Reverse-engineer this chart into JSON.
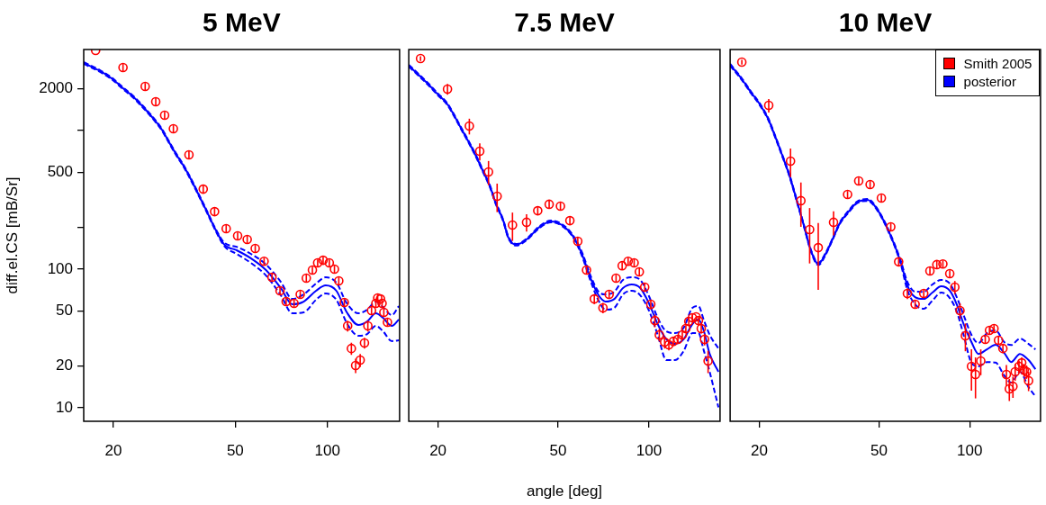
{
  "chart_data": [
    {
      "type": "scatter",
      "title": "5 MeV",
      "ylabel": "diff.el.CS [mB/Sr]",
      "log": "xy",
      "xlim": [
        16,
        172
      ],
      "xticks": [
        20,
        50,
        100
      ],
      "ylim": [
        8,
        3840
      ],
      "yticks": [
        10,
        20,
        50,
        100,
        {
          "value": 200,
          "label": null
        },
        500,
        {
          "value": 1000,
          "label": null
        },
        2000
      ],
      "series": [
        {
          "color": "#ff0000",
          "marker": "circle",
          "x": [
            17.5,
            21.5,
            25.4,
            27.5,
            29.4,
            31.4,
            35.3,
            39.3,
            42.8,
            46.7,
            50.9,
            54.7,
            58.1,
            62.1,
            65.9,
            70.0,
            73.3,
            77.8,
            81.5,
            85.3,
            89.3,
            92.9,
            96.8,
            101.4,
            105.4,
            108.9,
            113.5,
            116.4,
            119.7,
            123.6,
            127.9,
            132.1,
            135.5,
            139.3,
            143.9,
            145.9,
            149.0,
            150.8,
            152.8,
            157.0
          ],
          "values": [
            3784,
            2849,
            2080,
            1614,
            1289,
            1030,
            668,
            378,
            260,
            196,
            174,
            164,
            141,
            114,
            87.5,
            69.9,
            58.4,
            56.7,
            65.8,
            86.1,
            98.5,
            111,
            116,
            111,
            100,
            82.4,
            57.5,
            39.0,
            26.8,
            20.2,
            22.1,
            29.4,
            39.0,
            50.3,
            56.7,
            62.0,
            61.0,
            56.7,
            48.8,
            41.4
          ],
          "errors": [
            null,
            170,
            120,
            97,
            77,
            62,
            40,
            23,
            16,
            12,
            10,
            10,
            8.5,
            6.8,
            5.3,
            4.2,
            3.5,
            3.4,
            3.9,
            5.2,
            5.9,
            6.7,
            7.0,
            6.7,
            6.0,
            4.9,
            3.5,
            3.5,
            2.7,
            2.4,
            2.4,
            2.6,
            3.5,
            3.0,
            3.4,
            3.7,
            null,
            3.4,
            2.9,
            2.5
          ]
        },
        {
          "type": "line",
          "color": "#0000ff",
          "x": [
            16.0,
            18.1,
            19.9,
            21.5,
            23.3,
            25.2,
            26.9,
            28.8,
            30.4,
            32.0,
            34.0,
            35.8,
            37.8,
            40.4,
            43.1,
            46.1,
            50.5,
            56.2,
            63.0,
            70.4,
            76.8,
            83.6,
            91.8,
            98.7,
            106.9,
            115.7,
            126.2,
            134.8,
            143.9,
            151.8,
            162.3,
            171.0
          ],
          "values": [
            3069,
            2683,
            2345,
            2018,
            1738,
            1453,
            1233,
            1015,
            823,
            678,
            550,
            446,
            351,
            260,
            193,
            150,
            137,
            120,
            98.5,
            73.1,
            55.8,
            58.4,
            69.9,
            76.4,
            69.9,
            48.8,
            39.6,
            42.0,
            48.1,
            44.6,
            39.0,
            43.3
          ]
        },
        {
          "type": "line",
          "color": "#0000ff",
          "line_style": "dashed",
          "x": [
            16.0,
            18.1,
            19.9,
            21.5,
            23.3,
            25.2,
            26.9,
            28.8,
            30.4,
            32.0,
            34.0,
            35.8,
            37.8,
            40.4,
            43.1,
            46.1,
            50.5,
            56.2,
            63.0,
            70.4,
            76.8,
            83.6,
            91.8,
            98.7,
            106.9,
            115.7,
            126.2,
            134.8,
            143.9,
            151.8,
            162.3,
            171.0
          ],
          "values": [
            3115,
            2723,
            2380,
            2048,
            1764,
            1475,
            1252,
            1030,
            835,
            688,
            558,
            453,
            356,
            264,
            196,
            155,
            145,
            129,
            108,
            81.1,
            61.0,
            65.8,
            78.8,
            87.4,
            80.0,
            56.7,
            48.1,
            51.0,
            58.4,
            53.3,
            46.6,
            54.2
          ]
        },
        {
          "type": "line",
          "color": "#0000ff",
          "line_style": "dashed",
          "x": [
            16.0,
            18.1,
            19.9,
            21.5,
            23.3,
            25.2,
            26.9,
            28.8,
            30.4,
            32.0,
            34.0,
            35.8,
            37.8,
            40.4,
            43.1,
            46.1,
            50.5,
            56.2,
            63.0,
            70.4,
            76.8,
            83.6,
            91.8,
            98.7,
            106.9,
            115.7,
            126.2,
            134.8,
            143.9,
            151.8,
            162.3,
            171.0
          ],
          "values": [
            3024,
            2643,
            2310,
            1988,
            1712,
            1431,
            1215,
            1000,
            811,
            668,
            542,
            439,
            346,
            256,
            190,
            146,
            129,
            111,
            90.0,
            64.9,
            48.1,
            48.8,
            60.2,
            66.8,
            60.2,
            40.8,
            33.1,
            34.1,
            39.0,
            35.7,
            30.3,
            30.7
          ]
        }
      ]
    },
    {
      "type": "scatter",
      "title": "7.5 MeV",
      "xlabel": "angle [deg]",
      "log": "xy",
      "tick_labels": "x",
      "xlim": [
        16,
        172
      ],
      "xticks": [
        20,
        50,
        100
      ],
      "ylim": [
        8,
        3840
      ],
      "series": [
        {
          "color": "#ff0000",
          "marker": "circle",
          "x": [
            17.5,
            21.5,
            25.4,
            27.5,
            29.4,
            31.4,
            35.3,
            39.3,
            42.8,
            46.7,
            50.9,
            54.7,
            58.1,
            62.1,
            65.9,
            70.4,
            73.8,
            77.8,
            81.5,
            85.3,
            89.3,
            92.9,
            96.8,
            101.4,
            104.6,
            108.2,
            112.7,
            116.4,
            120.5,
            124.7,
            129.0,
            132.5,
            135.5,
            139.3,
            143.3,
            145.9,
            149.0,
            152.8,
            157.0
          ],
          "values": [
            3306,
            1990,
            1077,
            709,
            503,
            336,
            208,
            218,
            264,
            294,
            285,
            224,
            159,
            98.5,
            61.0,
            52.6,
            65.8,
            86.1,
            106,
            114,
            111,
            95.6,
            74.2,
            55.8,
            42.6,
            33.6,
            29.8,
            28.5,
            30.2,
            31.2,
            33.6,
            37.3,
            42.0,
            44.6,
            45.3,
            42.6,
            37.3,
            31.2,
            21.8
          ],
          "errors": [
            130,
            180,
            140,
            100,
            100,
            78,
            48,
            31,
            16,
            18,
            17,
            13,
            10,
            6.0,
            5.0,
            4.5,
            4.0,
            5.0,
            6.5,
            7.0,
            7.0,
            6.0,
            5.0,
            4.5,
            4.5,
            3.5,
            3.0,
            2.5,
            2.2,
            2.0,
            2.0,
            2.2,
            2.5,
            2.7,
            null,
            2.6,
            3.0,
            3.0,
            4.0
          ]
        },
        {
          "type": "line",
          "color": "#0000ff",
          "x": [
            16.0,
            17.1,
            18.5,
            20.0,
            21.4,
            22.6,
            23.8,
            25.2,
            26.6,
            28.0,
            29.8,
            31.0,
            32.9,
            34.2,
            36.3,
            39.6,
            43.1,
            47.3,
            51.5,
            56.2,
            60.1,
            64.2,
            68.1,
            71.8,
            76.8,
            82.0,
            87.7,
            93.6,
            100.0,
            106.9,
            114.2,
            122.0,
            130.3,
            139.3,
            145.9,
            151.8,
            158.9,
            169.9
          ],
          "values": [
            2936,
            2566,
            2175,
            1819,
            1566,
            1289,
            1046,
            836,
            668,
            526,
            390,
            303,
            224,
            169,
            150,
            166,
            199,
            221,
            208,
            171,
            127,
            84.9,
            64.8,
            58.4,
            61.0,
            73.1,
            77.6,
            73.1,
            56.7,
            40.2,
            31.2,
            28.9,
            31.2,
            40.2,
            43.3,
            36.2,
            24.5,
            18.2
          ]
        },
        {
          "type": "line",
          "color": "#0000ff",
          "line_style": "dashed",
          "x": [
            16.0,
            17.1,
            18.5,
            20.0,
            21.4,
            22.6,
            23.8,
            25.2,
            26.6,
            28.0,
            29.8,
            31.0,
            32.9,
            34.2,
            36.3,
            39.6,
            43.1,
            47.3,
            51.5,
            56.2,
            60.1,
            64.2,
            68.1,
            71.8,
            76.8,
            82.0,
            87.7,
            93.6,
            100.0,
            106.9,
            114.2,
            122.0,
            130.3,
            139.3,
            145.9,
            151.8,
            158.9,
            169.9
          ],
          "values": [
            2980,
            2604,
            2208,
            1846,
            1590,
            1308,
            1062,
            849,
            678,
            534,
            396,
            308,
            227,
            172,
            152,
            168,
            202,
            224,
            211,
            174,
            131,
            88.7,
            68.8,
            65.8,
            68.8,
            83.6,
            87.5,
            83.6,
            63.9,
            44.6,
            35.6,
            34.6,
            37.8,
            52.6,
            54.2,
            43.3,
            33.6,
            26.8
          ]
        },
        {
          "type": "line",
          "color": "#0000ff",
          "line_style": "dashed",
          "x": [
            16.0,
            17.1,
            18.5,
            20.0,
            21.4,
            22.6,
            23.8,
            25.2,
            26.6,
            28.0,
            29.8,
            31.0,
            32.9,
            34.2,
            36.3,
            39.6,
            43.1,
            47.3,
            51.5,
            56.2,
            60.1,
            64.2,
            68.1,
            71.8,
            76.8,
            82.0,
            87.7,
            93.6,
            100.0,
            106.9,
            114.2,
            122.0,
            130.3,
            139.3,
            145.9,
            151.8,
            158.9,
            169.9
          ],
          "values": [
            2893,
            2528,
            2143,
            1792,
            1543,
            1270,
            1031,
            824,
            658,
            518,
            384,
            299,
            221,
            167,
            148,
            164,
            196,
            218,
            205,
            168,
            123,
            81.1,
            59.3,
            51.0,
            52.6,
            65.8,
            69.9,
            64.8,
            50.3,
            33.6,
            22.1,
            22.1,
            25.7,
            34.6,
            34.6,
            26.1,
            18.2,
            10.1
          ]
        }
      ]
    },
    {
      "type": "scatter",
      "title": "10 MeV",
      "log": "xy",
      "tick_labels": "x",
      "legend": "top right",
      "xlim": [
        16,
        172
      ],
      "xticks": [
        20,
        50,
        100
      ],
      "ylim": [
        8,
        3840
      ],
      "series": [
        {
          "name": "Smith 2005",
          "color": "#ff0000",
          "marker": "circle",
          "x": [
            17.5,
            21.5,
            25.4,
            27.5,
            29.4,
            31.4,
            35.3,
            39.3,
            42.8,
            46.7,
            50.9,
            54.7,
            58.1,
            62.1,
            65.9,
            70.4,
            73.8,
            77.8,
            81.5,
            85.9,
            89.3,
            92.9,
            96.8,
            101.4,
            104.6,
            108.9,
            112.7,
            116.4,
            120.5,
            124.7,
            129.0,
            132.5,
            135.5,
            139.3,
            141.7,
            145.9,
            149.0,
            151.8,
            154.6,
            157.0
          ],
          "values": [
            3115,
            1520,
            601,
            312,
            193,
            143,
            218,
            346,
            433,
            408,
            326,
            202,
            113,
            66.8,
            55.8,
            66.8,
            97.1,
            108,
            109,
            92.8,
            74.2,
            50.3,
            33.1,
            19.9,
            17.4,
            21.8,
            31.2,
            36.2,
            37.3,
            30.7,
            26.8,
            17.4,
            13.7,
            14.3,
            18.2,
            19.9,
            21.1,
            18.7,
            18.2,
            15.7
          ],
          "errors": [
            120,
            170,
            140,
            110,
            83,
            72,
            43,
            20,
            25,
            24,
            19,
            12,
            7.0,
            6.0,
            4.0,
            4.0,
            6.0,
            6.5,
            6.5,
            5.5,
            8.0,
            6.5,
            7.5,
            6.6,
            5.7,
            4.6,
            2.0,
            2.2,
            2.2,
            2.0,
            2.0,
            3.0,
            2.5,
            2.5,
            2.5,
            2.0,
            2.0,
            2.0,
            2.0,
            2.5
          ]
        },
        {
          "type": "line",
          "name": "posterior",
          "color": "#0000ff",
          "x": [
            16.0,
            17.5,
            18.8,
            20.0,
            21.4,
            22.6,
            23.8,
            25.2,
            26.6,
            28.0,
            29.8,
            31.4,
            33.1,
            35.1,
            37.0,
            39.6,
            42.3,
            45.8,
            49.2,
            54.0,
            58.9,
            62.1,
            65.9,
            70.4,
            75.2,
            80.4,
            85.9,
            90.6,
            95.5,
            101.4,
            106.9,
            114.2,
            122.0,
            130.3,
            137.5,
            146.9,
            157.0,
            165.5
          ],
          "values": [
            2979,
            2345,
            1875,
            1566,
            1214,
            901,
            668,
            473,
            316,
            214,
            133,
            109,
            127,
            166,
            214,
            260,
            303,
            316,
            272,
            185,
            114,
            76.4,
            62.9,
            61.0,
            67.8,
            75.3,
            69.9,
            55.8,
            40.2,
            29.8,
            24.5,
            26.4,
            28.5,
            24.9,
            21.4,
            24.5,
            22.1,
            19.0
          ]
        },
        {
          "type": "line",
          "color": "#0000ff",
          "line_style": "dashed",
          "x": [
            16.0,
            17.5,
            18.8,
            20.0,
            21.4,
            22.6,
            23.8,
            25.2,
            26.6,
            28.0,
            29.8,
            31.4,
            33.1,
            35.1,
            37.0,
            39.6,
            42.3,
            45.8,
            49.2,
            54.0,
            58.9,
            62.1,
            65.9,
            70.4,
            75.2,
            80.4,
            85.9,
            90.6,
            95.5,
            101.4,
            106.9,
            114.2,
            122.0,
            130.3,
            137.5,
            146.9,
            157.0,
            165.5
          ],
          "values": [
            3024,
            2380,
            1903,
            1590,
            1232,
            915,
            678,
            480,
            321,
            217,
            135,
            111,
            129,
            168,
            217,
            264,
            308,
            321,
            276,
            188,
            117,
            81.1,
            68.8,
            68.7,
            77.6,
            83.6,
            78.8,
            62.9,
            46.7,
            33.6,
            29.3,
            34.6,
            36.2,
            29.8,
            28.4,
            31.6,
            28.9,
            26.4
          ]
        },
        {
          "type": "line",
          "color": "#0000ff",
          "line_style": "dashed",
          "x": [
            16.0,
            17.5,
            18.8,
            20.0,
            21.4,
            22.6,
            23.8,
            25.2,
            26.6,
            28.0,
            29.8,
            31.4,
            33.1,
            35.1,
            37.0,
            39.6,
            42.3,
            45.8,
            49.2,
            54.0,
            58.9,
            62.1,
            65.9,
            70.4,
            75.2,
            80.4,
            85.9,
            90.6,
            95.5,
            101.4,
            106.9,
            114.2,
            122.0,
            130.3,
            137.5,
            146.9,
            157.0,
            165.5
          ],
          "values": [
            2935,
            2310,
            1847,
            1543,
            1196,
            888,
            658,
            466,
            311,
            211,
            131,
            107,
            125,
            164,
            211,
            256,
            299,
            311,
            268,
            182,
            111,
            70.9,
            55.8,
            51.8,
            59.3,
            67.8,
            62.0,
            49.5,
            33.6,
            21.1,
            19.9,
            21.4,
            21.2,
            17.1,
            15.2,
            18.2,
            14.1,
            12.1
          ]
        }
      ]
    }
  ]
}
